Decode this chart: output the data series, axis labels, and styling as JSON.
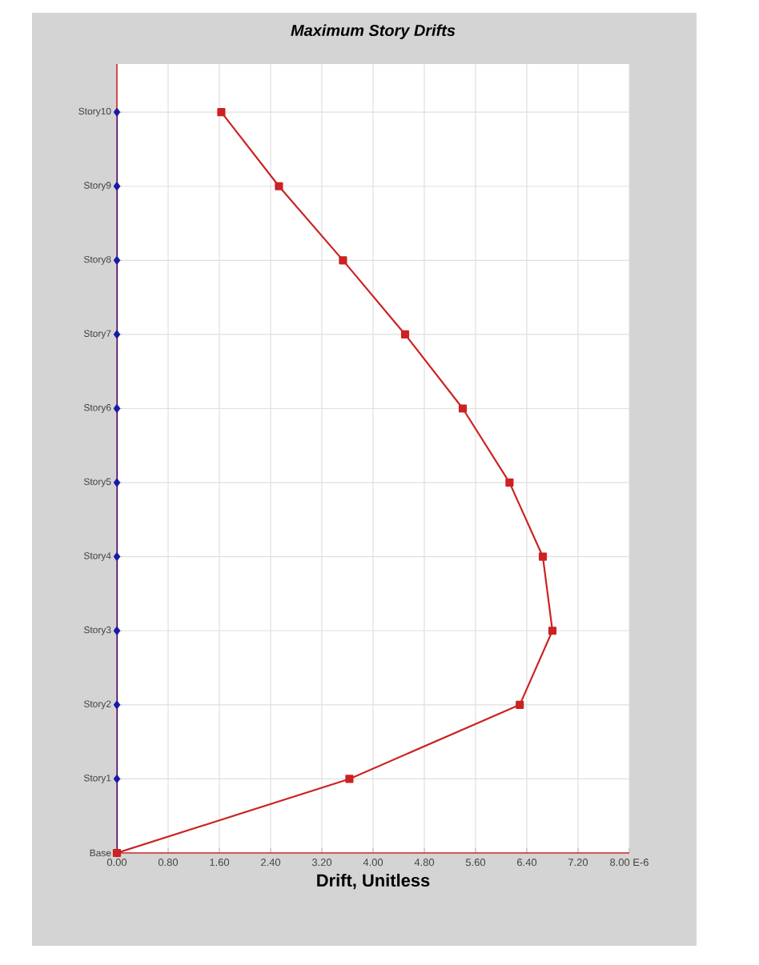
{
  "chart_data": {
    "type": "line",
    "title": "Maximum Story Drifts",
    "xlabel": "Drift, Unitless",
    "orientation": "horizontal",
    "categories": [
      "Story10",
      "Story9",
      "Story8",
      "Story7",
      "Story6",
      "Story5",
      "Story4",
      "Story3",
      "Story2",
      "Story1",
      "Base"
    ],
    "series": [
      {
        "color": "#1a1aa8",
        "marker": "diamond",
        "values": [
          0,
          0,
          0,
          0,
          0,
          0,
          0,
          0,
          0,
          0,
          0
        ]
      },
      {
        "color": "#cc2222",
        "marker": "square",
        "values": [
          1.63,
          2.53,
          3.53,
          4.5,
          5.4,
          6.13,
          6.65,
          6.8,
          6.29,
          3.63,
          0
        ]
      }
    ],
    "xlim": [
      0,
      8
    ],
    "xticks": [
      {
        "value": 0,
        "label": "0.00"
      },
      {
        "value": 0.8,
        "label": "0.80"
      },
      {
        "value": 1.6,
        "label": "1.60"
      },
      {
        "value": 2.4,
        "label": "2.40"
      },
      {
        "value": 3.2,
        "label": "3.20"
      },
      {
        "value": 4,
        "label": "4.00"
      },
      {
        "value": 4.8,
        "label": "4.80"
      },
      {
        "value": 5.6,
        "label": "5.60"
      },
      {
        "value": 6.4,
        "label": "6.40"
      },
      {
        "value": 7.2,
        "label": "7.20"
      },
      {
        "value": 8,
        "label": "8.00 E-6"
      }
    ],
    "grid": true
  }
}
